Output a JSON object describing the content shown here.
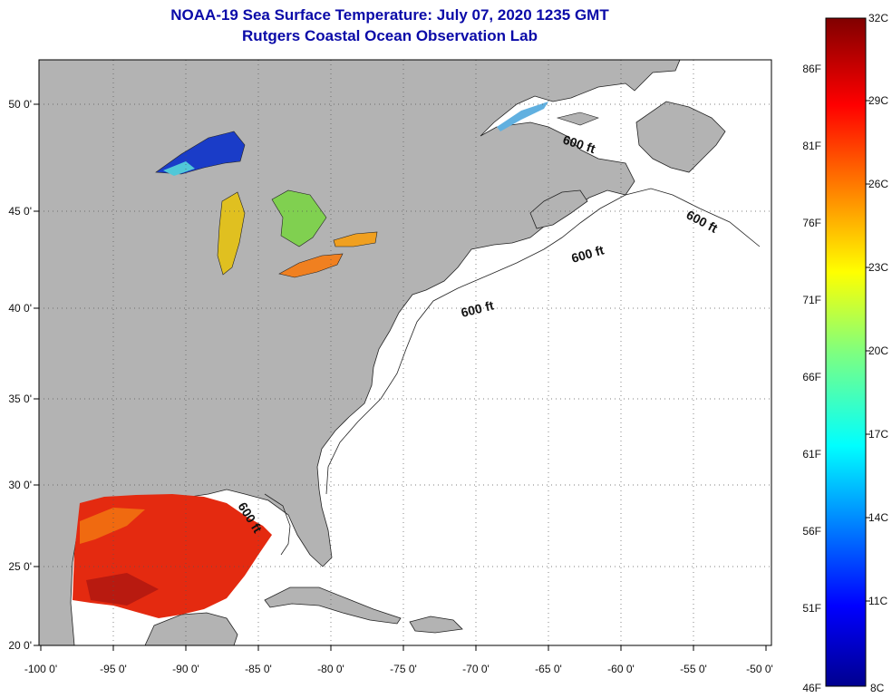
{
  "header": {
    "title_line1": "NOAA-19 Sea Surface Temperature:  July 07, 2020 1235 GMT",
    "title_line2": "Rutgers Coastal Ocean Observation Lab"
  },
  "map": {
    "lon_ticks": [
      "-100 0'",
      "-95 0'",
      "-90 0'",
      "-85 0'",
      "-80 0'",
      "-75 0'",
      "-70 0'",
      "-65 0'",
      "-60 0'",
      "-55 0'",
      "-50 0'"
    ],
    "lat_ticks": [
      "50 0'",
      "45 0'",
      "40 0'",
      "35 0'",
      "30 0'",
      "25 0'",
      "20 0'"
    ],
    "isobath_label": "600 ft",
    "colors": {
      "land": "#b3b3b3",
      "ocean": "#ffffff",
      "title": "#0a0aa8"
    }
  },
  "colorbar": {
    "celsius": [
      "32C",
      "29C",
      "26C",
      "23C",
      "20C",
      "17C",
      "14C",
      "11C",
      "8C"
    ],
    "fahrenheit": [
      "86F",
      "81F",
      "76F",
      "71F",
      "66F",
      "61F",
      "56F",
      "51F",
      "46F"
    ]
  }
}
